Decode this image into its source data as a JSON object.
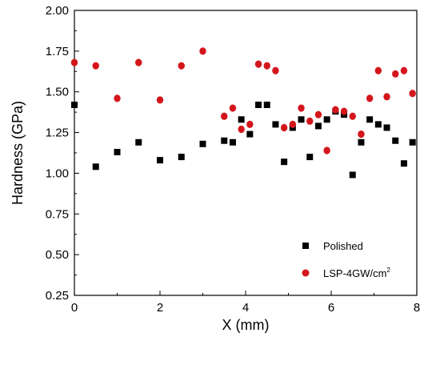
{
  "chart_data": {
    "type": "scatter",
    "xlabel": "X (mm)",
    "ylabel": "Hardness (GPa)",
    "xlim": [
      0,
      8
    ],
    "ylim": [
      0.25,
      2.0
    ],
    "x_ticks": [
      0,
      2,
      4,
      6,
      8
    ],
    "y_ticks": [
      "0.25",
      "0.50",
      "0.75",
      "1.00",
      "1.25",
      "1.50",
      "1.75",
      "2.00"
    ],
    "grid": false,
    "legend_position": "bottom-right",
    "series": [
      {
        "name": "Polished",
        "marker": "square",
        "color": "#000000",
        "x": [
          0,
          0.5,
          1,
          1.5,
          2,
          2.5,
          3,
          3.5,
          3.7,
          3.9,
          4.1,
          4.3,
          4.5,
          4.7,
          4.9,
          5.1,
          5.3,
          5.5,
          5.7,
          5.9,
          6.1,
          6.3,
          6.5,
          6.7,
          6.9,
          7.1,
          7.3,
          7.5,
          7.7,
          7.9
        ],
        "y": [
          1.42,
          1.04,
          1.13,
          1.19,
          1.08,
          1.1,
          1.18,
          1.2,
          1.19,
          1.33,
          1.24,
          1.42,
          1.42,
          1.3,
          1.07,
          1.28,
          1.33,
          1.1,
          1.29,
          1.33,
          1.38,
          1.36,
          0.99,
          1.19,
          1.33,
          1.3,
          1.28,
          1.2,
          1.06,
          1.19
        ]
      },
      {
        "name": "LSP-4GW/cm",
        "name_superscript": "2",
        "marker": "circle",
        "color": "#d4161c",
        "x": [
          0,
          0.5,
          1,
          1.5,
          2,
          2.5,
          3,
          3.5,
          3.7,
          3.9,
          4.1,
          4.3,
          4.5,
          4.7,
          4.9,
          5.1,
          5.3,
          5.5,
          5.7,
          5.9,
          6.1,
          6.3,
          6.5,
          6.7,
          6.9,
          7.1,
          7.3,
          7.5,
          7.7,
          7.9
        ],
        "y": [
          1.68,
          1.66,
          1.46,
          1.68,
          1.45,
          1.66,
          1.75,
          1.35,
          1.4,
          1.27,
          1.3,
          1.67,
          1.66,
          1.63,
          1.28,
          1.3,
          1.4,
          1.32,
          1.36,
          1.14,
          1.39,
          1.38,
          1.35,
          1.24,
          1.46,
          1.63,
          1.47,
          1.61,
          1.63,
          1.49
        ]
      }
    ]
  }
}
